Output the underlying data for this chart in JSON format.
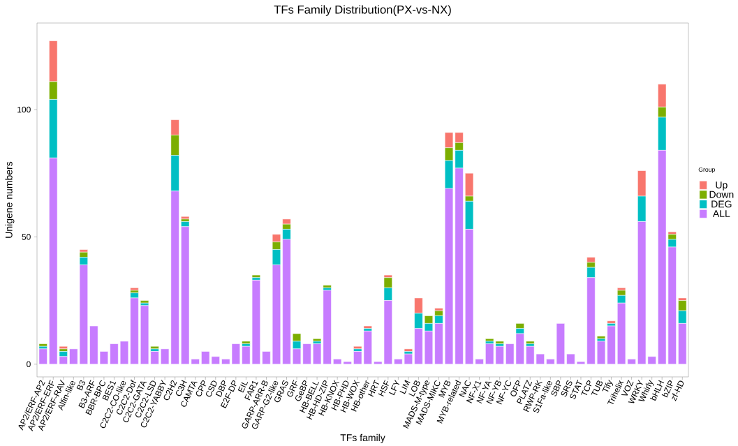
{
  "chart_data": {
    "type": "bar",
    "title": "TFs Family Distribution(PX-vs-NX)",
    "xlabel": "TFs family",
    "ylabel": "Unigene numbers",
    "legend_title": "Group",
    "categories": [
      "AP2/ERF-AP2",
      "AP2/ERF-ERF",
      "AP2/ERF-RAV",
      "Alfin-like",
      "B3",
      "B3-ARF",
      "BBR-BPC",
      "BES1",
      "C2C2-CO-like",
      "C2C2-Dof",
      "C2C2-GATA",
      "C2C2-LSD",
      "C2C2-YABBY",
      "C2H2",
      "C3H",
      "CAMTA",
      "CPP",
      "CSD",
      "DBP",
      "E2F-DP",
      "EIL",
      "FAR1",
      "GARP-ARR-B",
      "GARP-G2-like",
      "GRAS",
      "GRF",
      "GeBP",
      "HB-BELL",
      "HB-HD-ZIP",
      "HB-KNOX",
      "HB-PHD",
      "HB-WOX",
      "HB-other",
      "HRT",
      "HSF",
      "LFY",
      "LIM",
      "LOB",
      "MADS-M-type",
      "MADS-MIKC",
      "MYB",
      "MYB-related",
      "NAC",
      "NF-X1",
      "NF-YA",
      "NF-YB",
      "NF-YC",
      "OFP",
      "PLATZ",
      "RWP-RK",
      "S1Fa-like",
      "SBP",
      "SRS",
      "STAT",
      "TCP",
      "TUB",
      "Tify",
      "Trihelix",
      "VOZ",
      "WRKY",
      "Whirly",
      "bHLH",
      "bZIP",
      "zf-HD"
    ],
    "stacked": true,
    "series": [
      {
        "name": "ALL",
        "color": "#c77cff",
        "values": [
          6,
          81,
          3,
          6,
          39,
          15,
          5,
          8,
          9,
          26,
          23,
          5,
          6,
          68,
          54,
          2,
          5,
          3,
          2,
          8,
          7,
          33,
          5,
          39,
          49,
          6,
          8,
          8,
          29,
          2,
          1,
          5,
          13,
          1,
          25,
          2,
          4,
          14,
          13,
          16,
          69,
          77,
          53,
          2,
          8,
          7,
          8,
          12,
          7,
          4,
          2,
          16,
          4,
          1,
          34,
          9,
          15,
          24,
          2,
          56,
          3,
          84,
          46,
          16
        ]
      },
      {
        "name": "DEG",
        "color": "#00bfc4",
        "values": [
          1,
          23,
          2,
          0,
          3,
          0,
          0,
          0,
          0,
          2,
          1,
          1,
          0,
          14,
          2,
          0,
          0,
          0,
          0,
          0,
          1,
          1,
          0,
          6,
          4,
          3,
          0,
          1,
          1,
          0,
          0,
          1,
          1,
          0,
          5,
          0,
          1,
          6,
          3,
          3,
          11,
          7,
          11,
          0,
          1,
          1,
          0,
          2,
          1,
          0,
          0,
          0,
          0,
          0,
          4,
          1,
          1,
          3,
          0,
          10,
          0,
          13,
          3,
          5
        ]
      },
      {
        "name": "Down",
        "color": "#7cae00",
        "values": [
          1,
          7,
          1,
          0,
          2,
          0,
          0,
          0,
          0,
          1,
          1,
          1,
          0,
          8,
          1,
          0,
          0,
          0,
          0,
          0,
          1,
          1,
          0,
          3,
          2,
          3,
          0,
          1,
          1,
          0,
          0,
          0,
          0,
          0,
          4,
          0,
          0,
          0,
          3,
          2,
          5,
          3,
          2,
          0,
          1,
          1,
          0,
          2,
          1,
          0,
          0,
          0,
          0,
          0,
          2,
          1,
          0,
          2,
          0,
          0,
          0,
          4,
          2,
          4
        ]
      },
      {
        "name": "Up",
        "color": "#f8766d",
        "values": [
          0,
          16,
          1,
          0,
          1,
          0,
          0,
          0,
          0,
          1,
          0,
          0,
          0,
          6,
          1,
          0,
          0,
          0,
          0,
          0,
          0,
          0,
          0,
          3,
          2,
          0,
          0,
          0,
          0,
          0,
          0,
          1,
          1,
          0,
          1,
          0,
          1,
          6,
          0,
          1,
          6,
          4,
          9,
          0,
          0,
          0,
          0,
          0,
          0,
          0,
          0,
          0,
          0,
          0,
          2,
          0,
          1,
          1,
          0,
          10,
          0,
          9,
          1,
          1
        ]
      }
    ],
    "ylim": [
      -5,
      134
    ],
    "yticks": [
      0,
      50,
      100
    ],
    "legend": "right"
  }
}
